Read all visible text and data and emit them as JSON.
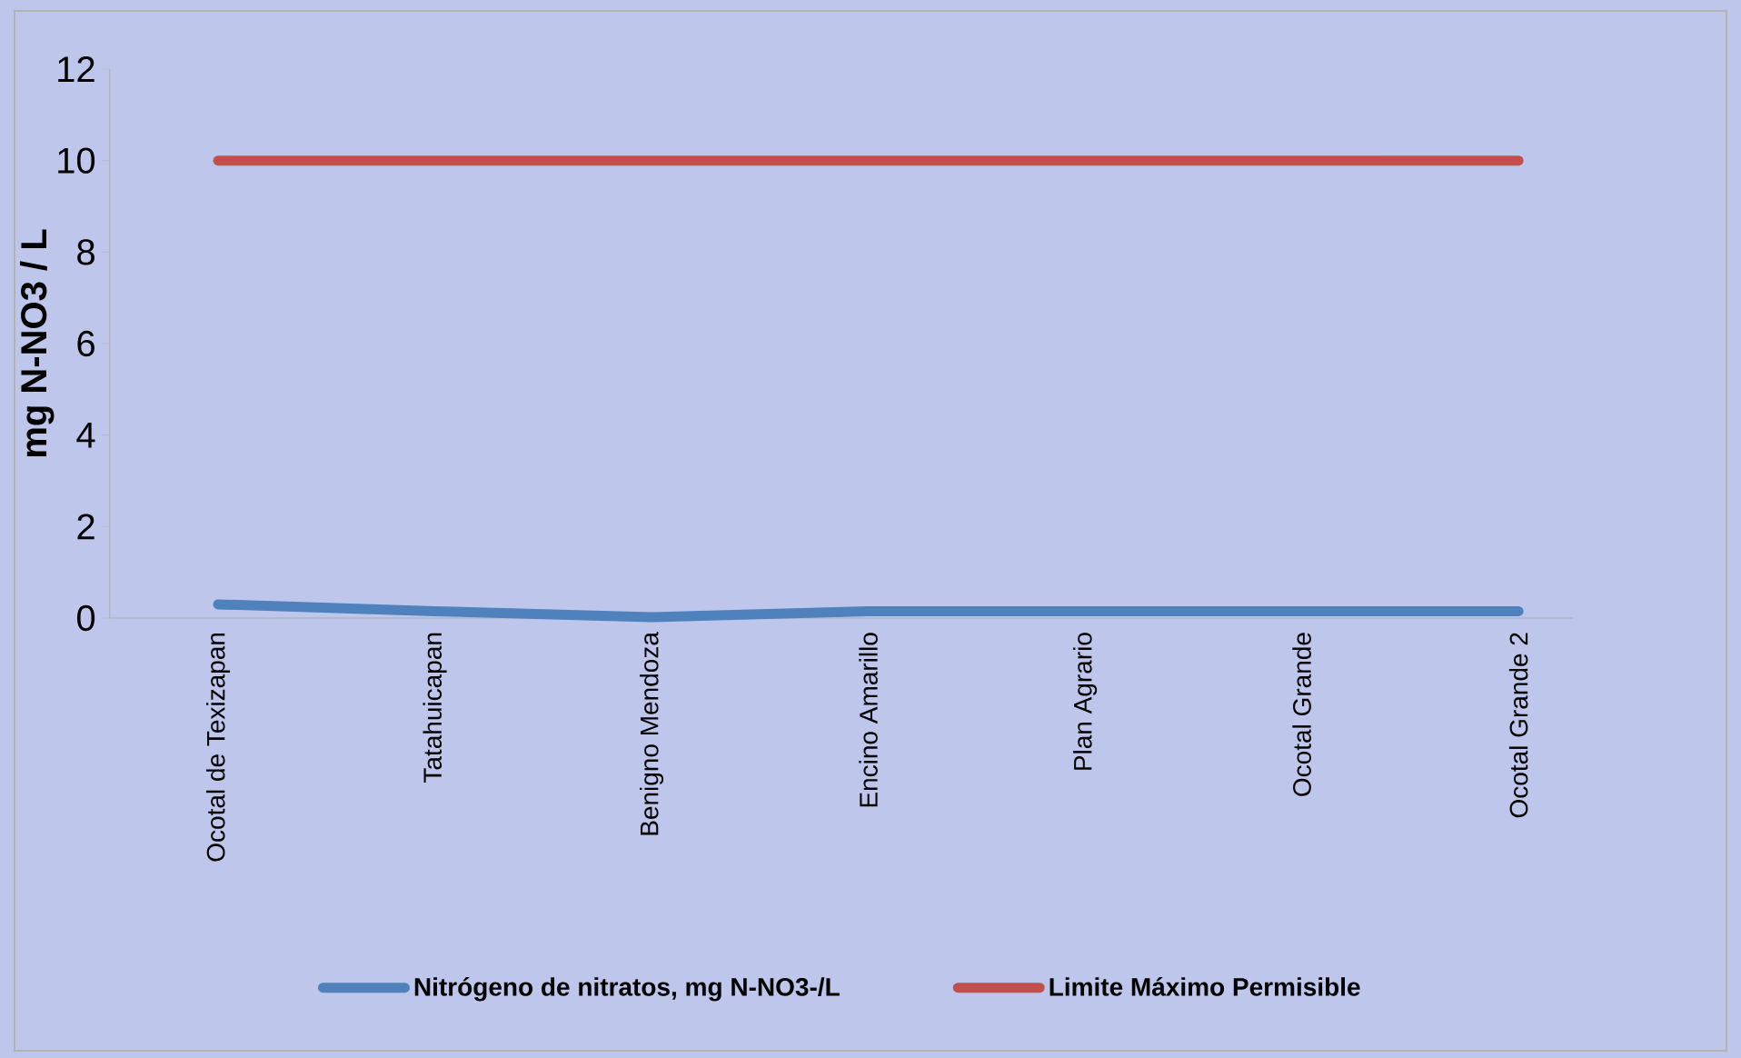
{
  "chart_data": {
    "type": "line",
    "ylabel": "mg N-NO3 / L",
    "categories": [
      "Ocotal de Texizapan",
      "Tatahuicapan",
      "Benigno Mendoza",
      "Encino Amarillo",
      "Plan Agrario",
      "Ocotal Grande",
      "Ocotal Grande 2"
    ],
    "series": [
      {
        "name": "Nitrógeno de nitratos, mg N-NO3-/L",
        "color": "#4f81bd",
        "values": [
          0.3,
          0.15,
          0.02,
          0.15,
          0.15,
          0.15,
          0.15
        ]
      },
      {
        "name": "Limite Máximo Permisible",
        "color": "#c0504d",
        "values": [
          10,
          10,
          10,
          10,
          10,
          10,
          10
        ]
      }
    ],
    "ylim": [
      0,
      12
    ],
    "yticks": [
      0,
      2,
      4,
      6,
      8,
      10,
      12
    ],
    "legend": "bottom",
    "marker": "none",
    "line_style": "solid"
  }
}
